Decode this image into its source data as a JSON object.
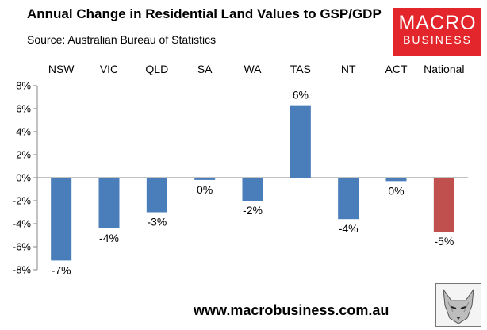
{
  "header": {
    "title": "Annual Change in Residential Land Values to GSP/GDP",
    "source": "Source: Australian Bureau of Statistics"
  },
  "logo": {
    "line1": "MACRO",
    "line2": "BUSINESS"
  },
  "footer": {
    "url": "www.macrobusiness.com.au"
  },
  "colors": {
    "bar": "#4a7ebb",
    "national_bar": "#c0504d",
    "logo_red": "#e3262b"
  },
  "chart_data": {
    "type": "bar",
    "title": "Annual Change in Residential Land Values to GSP/GDP",
    "categories": [
      "NSW",
      "VIC",
      "QLD",
      "SA",
      "WA",
      "TAS",
      "NT",
      "ACT",
      "National"
    ],
    "values": [
      -7.2,
      -4.4,
      -3.0,
      -0.2,
      -2.0,
      6.3,
      -3.6,
      -0.3,
      -4.7
    ],
    "data_labels": [
      "-7%",
      "-4%",
      "-3%",
      "0%",
      "-2%",
      "6%",
      "-4%",
      "0%",
      "-5%"
    ],
    "xlabel": "",
    "ylabel": "",
    "ylim": [
      -8,
      8
    ],
    "yticks": [
      8,
      6,
      4,
      2,
      0,
      -2,
      -4,
      -6,
      -8
    ],
    "ytick_labels": [
      "8%",
      "6%",
      "4%",
      "2%",
      "0%",
      "-2%",
      "-4%",
      "-6%",
      "-8%"
    ],
    "category_axis_position": "top",
    "grid": false,
    "legend": "none"
  }
}
